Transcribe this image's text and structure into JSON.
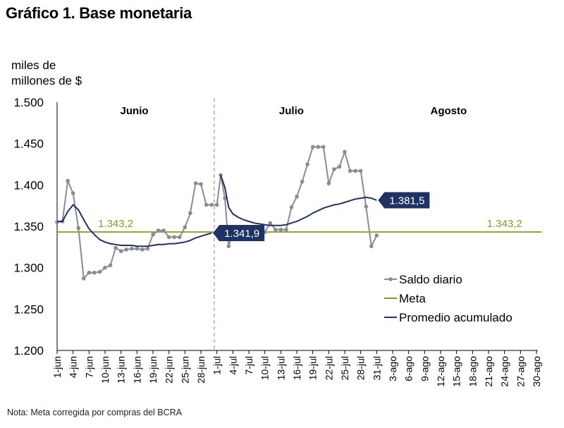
{
  "title": "Gráfico 1. Base monetaria",
  "note": "Nota: Meta corregida por compras del BCRA",
  "colors": {
    "saldo": "#8c8c8c",
    "meta": "#8a9a1b",
    "promedio": "#1f3266",
    "callout": "#1f3266",
    "axis": "#000000",
    "divider": "#9a9a9a"
  },
  "chart_data": {
    "type": "line",
    "ylabel": "miles de millones de $",
    "ylabel_lines": [
      "miles de",
      "millones de $"
    ],
    "ylim": [
      1200,
      1500
    ],
    "yticks": [
      1200,
      1250,
      1300,
      1350,
      1400,
      1450,
      1500
    ],
    "ytick_labels": [
      "1.200",
      "1.250",
      "1.300",
      "1.350",
      "1.400",
      "1.450",
      "1.500"
    ],
    "x_days": 91,
    "x_ticks": [
      {
        "i": 0,
        "label": "1-jun"
      },
      {
        "i": 3,
        "label": "4-jun"
      },
      {
        "i": 6,
        "label": "7-jun"
      },
      {
        "i": 9,
        "label": "10-jun"
      },
      {
        "i": 12,
        "label": "13-jun"
      },
      {
        "i": 15,
        "label": "16-jun"
      },
      {
        "i": 18,
        "label": "19-jun"
      },
      {
        "i": 21,
        "label": "22-jun"
      },
      {
        "i": 24,
        "label": "25-jun"
      },
      {
        "i": 27,
        "label": "28-jun"
      },
      {
        "i": 30,
        "label": "1-jul"
      },
      {
        "i": 33,
        "label": "4-jul"
      },
      {
        "i": 36,
        "label": "7-jul"
      },
      {
        "i": 39,
        "label": "10-jul"
      },
      {
        "i": 42,
        "label": "13-jul"
      },
      {
        "i": 45,
        "label": "16-jul"
      },
      {
        "i": 48,
        "label": "19-jul"
      },
      {
        "i": 51,
        "label": "22-jul"
      },
      {
        "i": 54,
        "label": "25-jul"
      },
      {
        "i": 57,
        "label": "28-jul"
      },
      {
        "i": 60,
        "label": "31-jul"
      },
      {
        "i": 63,
        "label": "3-ago"
      },
      {
        "i": 66,
        "label": "6-ago"
      },
      {
        "i": 69,
        "label": "9-ago"
      },
      {
        "i": 72,
        "label": "12-ago"
      },
      {
        "i": 75,
        "label": "15-ago"
      },
      {
        "i": 78,
        "label": "18-ago"
      },
      {
        "i": 81,
        "label": "21-ago"
      },
      {
        "i": 84,
        "label": "24-ago"
      },
      {
        "i": 87,
        "label": "27-ago"
      },
      {
        "i": 90,
        "label": "30-ago"
      }
    ],
    "months": [
      {
        "label": "Junio",
        "i": 14.5
      },
      {
        "label": "Julio",
        "i": 44
      },
      {
        "label": "Agosto",
        "i": 73.5
      }
    ],
    "divider_day": 29.5,
    "series": [
      {
        "name": "Saldo diario",
        "style": "line-markers",
        "points": [
          [
            0,
            1355
          ],
          [
            1,
            1356
          ],
          [
            2,
            1405
          ],
          [
            3,
            1390
          ],
          [
            4,
            1348
          ],
          [
            5,
            1287
          ],
          [
            6,
            1294
          ],
          [
            7,
            1294
          ],
          [
            8,
            1295
          ],
          [
            9,
            1300
          ],
          [
            10,
            1303
          ],
          [
            11,
            1324
          ],
          [
            12,
            1320
          ],
          [
            13,
            1322
          ],
          [
            14,
            1323
          ],
          [
            15,
            1323
          ],
          [
            16,
            1322
          ],
          [
            17,
            1323
          ],
          [
            18,
            1340
          ],
          [
            19,
            1345
          ],
          [
            20,
            1345
          ],
          [
            21,
            1337
          ],
          [
            22,
            1337
          ],
          [
            23,
            1337
          ],
          [
            24,
            1349
          ],
          [
            25,
            1366
          ],
          [
            26,
            1402
          ],
          [
            27,
            1401
          ],
          [
            28,
            1376
          ],
          [
            29,
            1376
          ],
          [
            30,
            1376
          ],
          [
            30.7,
            1412
          ],
          [
            31.5,
            1384
          ],
          [
            32.2,
            1326
          ],
          [
            33,
            1343
          ],
          [
            39,
            1343
          ],
          [
            40,
            1354
          ],
          [
            41,
            1346
          ],
          [
            42,
            1346
          ],
          [
            43,
            1346
          ],
          [
            44,
            1373
          ],
          [
            45,
            1386
          ],
          [
            46,
            1404
          ],
          [
            47,
            1425
          ],
          [
            48,
            1446
          ],
          [
            49,
            1446
          ],
          [
            50,
            1446
          ],
          [
            51,
            1402
          ],
          [
            52,
            1419
          ],
          [
            53,
            1422
          ],
          [
            54,
            1440
          ],
          [
            55,
            1417
          ],
          [
            56,
            1417
          ],
          [
            57,
            1417
          ],
          [
            58,
            1374
          ],
          [
            59,
            1326
          ],
          [
            60,
            1339
          ]
        ]
      },
      {
        "name": "Meta",
        "style": "line",
        "value": 1343.2,
        "label": "1.343,2",
        "points": [
          [
            0,
            1343.2
          ],
          [
            91,
            1343.2
          ]
        ]
      },
      {
        "name": "Promedio acumulado",
        "style": "line",
        "points": [
          [
            0,
            1356
          ],
          [
            1,
            1356
          ],
          [
            2,
            1368
          ],
          [
            3,
            1376
          ],
          [
            4,
            1370
          ],
          [
            5,
            1358
          ],
          [
            6,
            1347
          ],
          [
            7,
            1340
          ],
          [
            8,
            1334
          ],
          [
            9,
            1331
          ],
          [
            10,
            1329
          ],
          [
            11,
            1328
          ],
          [
            12,
            1327
          ],
          [
            13,
            1327
          ],
          [
            14,
            1327
          ],
          [
            15,
            1326
          ],
          [
            16,
            1326
          ],
          [
            17,
            1326
          ],
          [
            18,
            1327
          ],
          [
            19,
            1328
          ],
          [
            20,
            1328
          ],
          [
            21,
            1329
          ],
          [
            22,
            1329
          ],
          [
            23,
            1330
          ],
          [
            24,
            1331
          ],
          [
            25,
            1333
          ],
          [
            26,
            1336
          ],
          [
            27,
            1338
          ],
          [
            28,
            1340
          ],
          [
            29,
            1341.9
          ]
        ],
        "points_2": [
          [
            30.7,
            1412
          ],
          [
            31.5,
            1397
          ],
          [
            32.2,
            1373
          ],
          [
            33,
            1365
          ],
          [
            34,
            1361
          ],
          [
            35,
            1358
          ],
          [
            36,
            1356
          ],
          [
            37,
            1354
          ],
          [
            38,
            1353
          ],
          [
            39,
            1352
          ],
          [
            40,
            1351
          ],
          [
            41,
            1351
          ],
          [
            42,
            1351
          ],
          [
            43,
            1352
          ],
          [
            44,
            1354
          ],
          [
            45,
            1356
          ],
          [
            46,
            1359
          ],
          [
            47,
            1362
          ],
          [
            48,
            1366
          ],
          [
            49,
            1369
          ],
          [
            50,
            1372
          ],
          [
            51,
            1374
          ],
          [
            52,
            1376
          ],
          [
            53,
            1377
          ],
          [
            54,
            1379
          ],
          [
            55,
            1381
          ],
          [
            56,
            1383
          ],
          [
            57,
            1384
          ],
          [
            58,
            1385
          ],
          [
            59,
            1384
          ],
          [
            60,
            1381.5
          ]
        ]
      }
    ],
    "callouts": [
      {
        "label": "1.341,9",
        "i": 29,
        "value": 1341.9
      },
      {
        "label": "1.381,5",
        "i": 60,
        "value": 1381.5
      }
    ],
    "meta_labels": [
      {
        "label": "1.343,2",
        "i": 11
      },
      {
        "label": "1.343,2",
        "i": 84
      }
    ],
    "legend": {
      "placement": "bottom-right",
      "entries": [
        {
          "name": "Saldo diario",
          "style": "line-markers"
        },
        {
          "name": "Meta",
          "style": "line"
        },
        {
          "name": "Promedio acumulado",
          "style": "line"
        }
      ]
    }
  }
}
